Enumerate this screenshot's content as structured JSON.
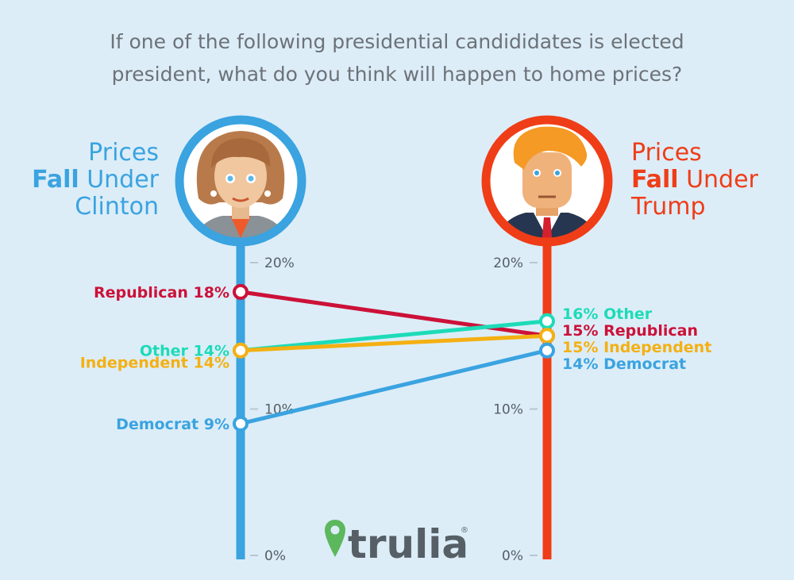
{
  "question": {
    "line1": "If one of the following presidential candididates is elected",
    "line2": "president, what do you think will happen to home prices?"
  },
  "left_title": {
    "line1": "Prices",
    "bold": "Fall",
    "line2_rest": " Under",
    "line3": "Clinton",
    "color": "#3aa3e0"
  },
  "right_title": {
    "line1": "Prices",
    "bold": "Fall",
    "line2_rest": " Under",
    "line3": "Trump",
    "color": "#ef3d18"
  },
  "brand": {
    "name": "trulia",
    "mark": "®",
    "color": "#5cb85c"
  },
  "icons": {
    "left_portrait": "clinton-portrait-icon",
    "right_portrait": "trump-portrait-icon",
    "logo": "map-pin-icon"
  },
  "chart_data": {
    "type": "line",
    "categories": [
      "Clinton",
      "Trump"
    ],
    "ylim": [
      0,
      20
    ],
    "ticks": [
      {
        "value": 0,
        "label": "0%"
      },
      {
        "value": 10,
        "label": "10%"
      },
      {
        "value": 20,
        "label": "20%"
      }
    ],
    "series": [
      {
        "name": "Republican",
        "values": [
          18,
          15
        ],
        "color": "#cc1138",
        "left_label": "Republican 18%",
        "right_label": "15% Republican"
      },
      {
        "name": "Other",
        "values": [
          14,
          16
        ],
        "color": "#1ddbb8",
        "left_label": "Other 14%",
        "right_label": "16% Other"
      },
      {
        "name": "Independent",
        "values": [
          14,
          15
        ],
        "color": "#f4b012",
        "left_label": "Independent 14%",
        "right_label": "15% Independent"
      },
      {
        "name": "Democrat",
        "values": [
          9,
          14
        ],
        "color": "#3aa3e0",
        "left_label": "Democrat 9%",
        "right_label": "14% Democrat"
      }
    ],
    "axis_colors": [
      "#3aa3e0",
      "#ef3d18"
    ]
  }
}
